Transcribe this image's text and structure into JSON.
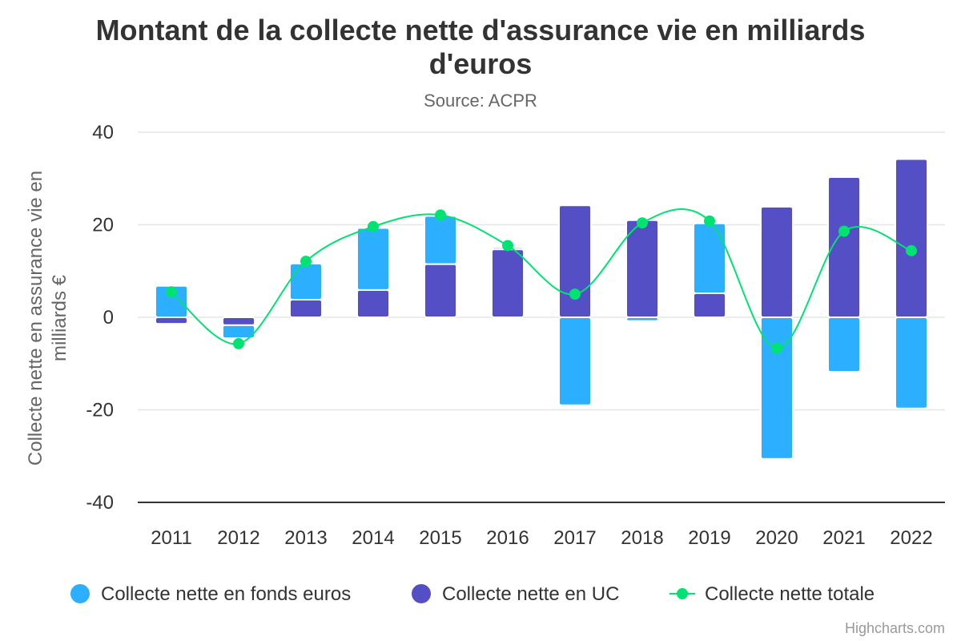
{
  "title_line1": "Montant de la collecte nette d'assurance vie en milliards",
  "title_line2": "d'euros",
  "subtitle": "Source: ACPR",
  "ylabel_line1": "Collecte nette en assurance vie en",
  "ylabel_line2": "milliards €",
  "credits": "Highcharts.com",
  "colors": {
    "fonds_euros": "#2caffe",
    "uc": "#544fc5",
    "totale": "#00e272",
    "grid": "#e6e6e6",
    "axis_line": "#333333"
  },
  "chart_data": {
    "type": "bar",
    "stacked": true,
    "categories": [
      "2011",
      "2012",
      "2013",
      "2014",
      "2015",
      "2016",
      "2017",
      "2018",
      "2019",
      "2020",
      "2021",
      "2022"
    ],
    "ylim": [
      -40,
      40
    ],
    "yticks": [
      "40",
      "20",
      "0",
      "-20",
      "-40"
    ],
    "ytick_values": [
      40,
      20,
      0,
      -20,
      -40
    ],
    "grid": true,
    "legend_position": "bottom",
    "series": [
      {
        "name": "Collecte nette en fonds euros",
        "type": "column",
        "values": [
          6.8,
          -2.8,
          7.8,
          13.4,
          10.4,
          0.4,
          -19.0,
          -0.8,
          15.1,
          -30.6,
          -11.8,
          -19.7
        ]
      },
      {
        "name": "Collecte nette en UC",
        "type": "column",
        "values": [
          -1.4,
          -1.7,
          3.8,
          5.9,
          11.5,
          14.7,
          24.2,
          21.0,
          5.2,
          23.9,
          30.3,
          34.2
        ]
      },
      {
        "name": "Collecte nette totale",
        "type": "spline",
        "values": [
          5.5,
          -5.7,
          12.1,
          19.6,
          22.1,
          15.5,
          5.0,
          20.4,
          20.8,
          -6.7,
          18.6,
          14.4
        ]
      }
    ]
  }
}
